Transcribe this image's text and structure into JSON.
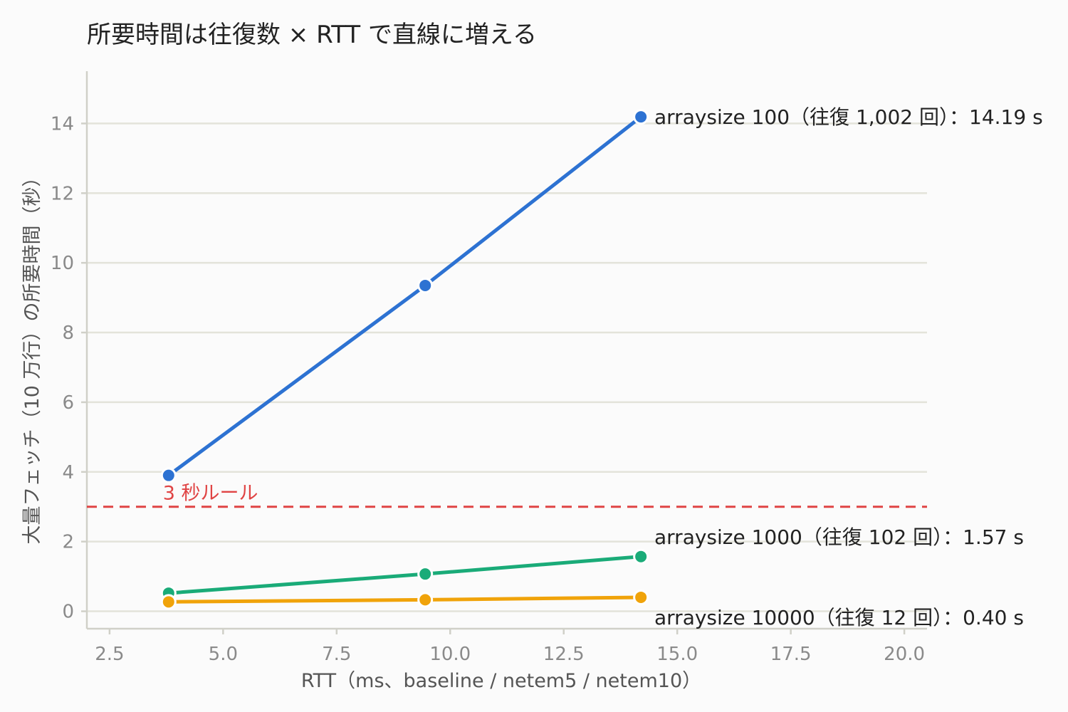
{
  "chart_data": {
    "type": "line",
    "title": "所要時間は往復数 × RTT で直線に増える",
    "xlabel": "RTT（ms、baseline / netem5 / netem10）",
    "ylabel": "大量フェッチ（10 万行）の所要時間（秒）",
    "xlim": [
      2,
      20.5
    ],
    "ylim": [
      -0.5,
      15.5
    ],
    "xticks": [
      "2.5",
      "5.0",
      "7.5",
      "10.0",
      "12.5",
      "15.0",
      "17.5",
      "20.0"
    ],
    "yticks": [
      "0",
      "2",
      "4",
      "6",
      "8",
      "10",
      "12",
      "14"
    ],
    "grid": "horizontal",
    "legend": "none",
    "series": [
      {
        "x": [
          3.8,
          9.45,
          14.2
        ],
        "y": [
          3.9,
          9.35,
          14.19
        ],
        "color": "#2d72d2",
        "annotation": "arraysize 100（往復 1,002 回）：14.19 s"
      },
      {
        "x": [
          3.8,
          9.45,
          14.2
        ],
        "y": [
          0.52,
          1.07,
          1.57
        ],
        "color": "#1aab78",
        "annotation": "arraysize 1000（往復 102 回）：1.57 s"
      },
      {
        "x": [
          3.8,
          9.45,
          14.2
        ],
        "y": [
          0.27,
          0.33,
          0.4
        ],
        "color": "#f0a30a",
        "annotation": "arraysize 10000（往復 12 回）：0.40 s"
      }
    ],
    "reference_line": {
      "y": 3,
      "label": "3 秒ルール",
      "color": "#e04444"
    }
  }
}
